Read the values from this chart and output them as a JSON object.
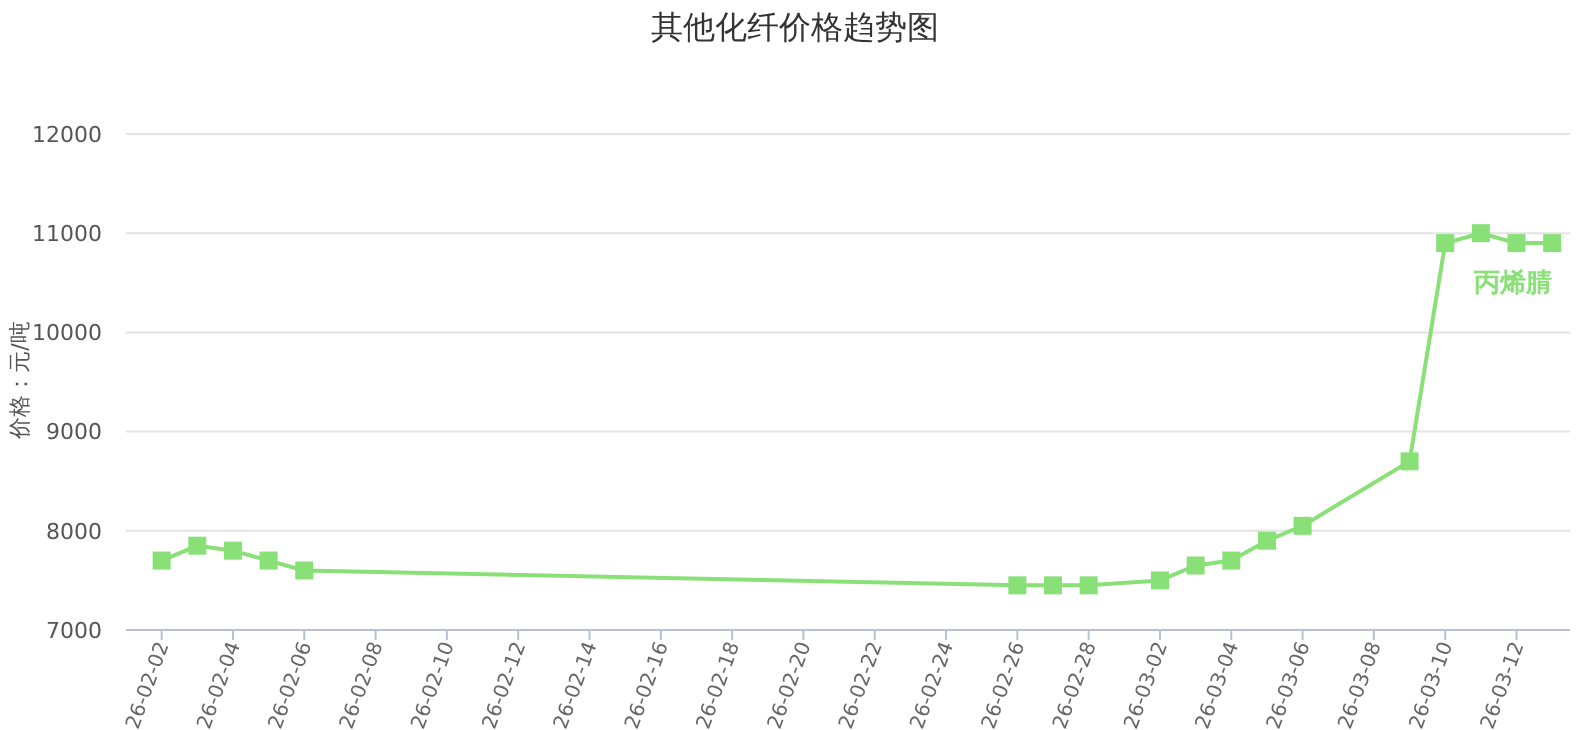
{
  "chart_data": {
    "type": "line",
    "title": "其他化纤价格趋势图",
    "ylabel": "价格：元/吨",
    "x": [
      "--02-02",
      "--02-03",
      "--02-04",
      "--02-05",
      "--02-06",
      "--02-26",
      "--02-27",
      "--02-28",
      "--03-02",
      "--03-03",
      "--03-04",
      "--03-05",
      "--03-06",
      "--03-09",
      "--03-10",
      "--03-11",
      "--03-12",
      "--03-13"
    ],
    "series": [
      {
        "name": "丙烯腈",
        "color": "#88e076",
        "values": [
          7700,
          7850,
          7800,
          7700,
          7600,
          7450,
          7450,
          7450,
          7500,
          7650,
          7700,
          7900,
          8050,
          8700,
          10900,
          11000,
          10900,
          10900
        ]
      }
    ],
    "xlim": [
      "--02-01",
      "--03-13T12:00"
    ],
    "xticks": [
      {
        "value": "--02-02",
        "label": "26-02-02"
      },
      {
        "value": "--02-04",
        "label": "26-02-04"
      },
      {
        "value": "--02-06",
        "label": "26-02-06"
      },
      {
        "value": "--02-08",
        "label": "26-02-08"
      },
      {
        "value": "--02-10",
        "label": "26-02-10"
      },
      {
        "value": "--02-12",
        "label": "26-02-12"
      },
      {
        "value": "--02-14",
        "label": "26-02-14"
      },
      {
        "value": "--02-16",
        "label": "26-02-16"
      },
      {
        "value": "--02-18",
        "label": "26-02-18"
      },
      {
        "value": "--02-20",
        "label": "26-02-20"
      },
      {
        "value": "--02-22",
        "label": "26-02-22"
      },
      {
        "value": "--02-24",
        "label": "26-02-24"
      },
      {
        "value": "--02-26",
        "label": "26-02-26"
      },
      {
        "value": "--02-28",
        "label": "26-02-28"
      },
      {
        "value": "--03-02",
        "label": "26-03-02"
      },
      {
        "value": "--03-04",
        "label": "26-03-04"
      },
      {
        "value": "--03-06",
        "label": "26-03-06"
      },
      {
        "value": "--03-08",
        "label": "26-03-08"
      },
      {
        "value": "--03-10",
        "label": "26-03-10"
      },
      {
        "value": "--03-12",
        "label": "26-03-12"
      }
    ],
    "ylim": [
      7000,
      12000
    ],
    "yticks": [
      7000,
      8000,
      9000,
      10000,
      11000,
      12000
    ],
    "grid": "y",
    "legend": false,
    "marker": "square",
    "line_style": "solid"
  }
}
